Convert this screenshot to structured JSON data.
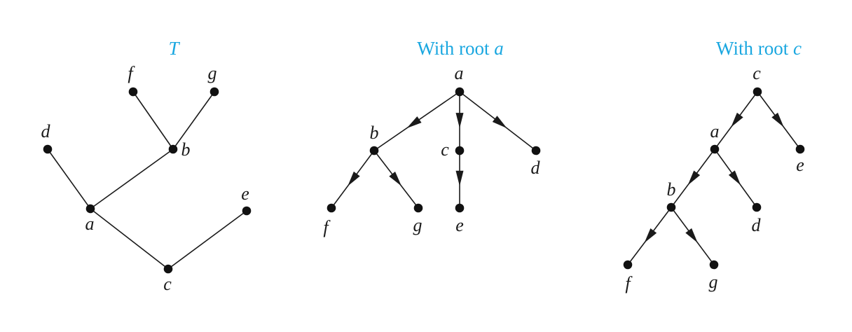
{
  "colors": {
    "title": "#1aa7e0",
    "ink": "#1a1a1a"
  },
  "panels": [
    {
      "id": "tree-t",
      "title_prefix": "",
      "title_var": "T",
      "directed": false,
      "nodes": [
        "f",
        "g",
        "d",
        "b",
        "e",
        "a",
        "c"
      ],
      "edges": [
        [
          "f",
          "b"
        ],
        [
          "g",
          "b"
        ],
        [
          "b",
          "a"
        ],
        [
          "d",
          "a"
        ],
        [
          "a",
          "c"
        ],
        [
          "e",
          "c"
        ]
      ]
    },
    {
      "id": "tree-root-a",
      "title_prefix": "With root ",
      "title_var": "a",
      "directed": true,
      "root": "a",
      "nodes": [
        "a",
        "b",
        "c",
        "d",
        "f",
        "g",
        "e"
      ],
      "edges": [
        [
          "a",
          "b"
        ],
        [
          "a",
          "c"
        ],
        [
          "a",
          "d"
        ],
        [
          "b",
          "f"
        ],
        [
          "b",
          "g"
        ],
        [
          "c",
          "e"
        ]
      ]
    },
    {
      "id": "tree-root-c",
      "title_prefix": "With root ",
      "title_var": "c",
      "directed": true,
      "root": "c",
      "nodes": [
        "c",
        "a",
        "e",
        "b",
        "d",
        "f",
        "g"
      ],
      "edges": [
        [
          "c",
          "a"
        ],
        [
          "c",
          "e"
        ],
        [
          "a",
          "b"
        ],
        [
          "a",
          "d"
        ],
        [
          "b",
          "f"
        ],
        [
          "b",
          "g"
        ]
      ]
    }
  ]
}
